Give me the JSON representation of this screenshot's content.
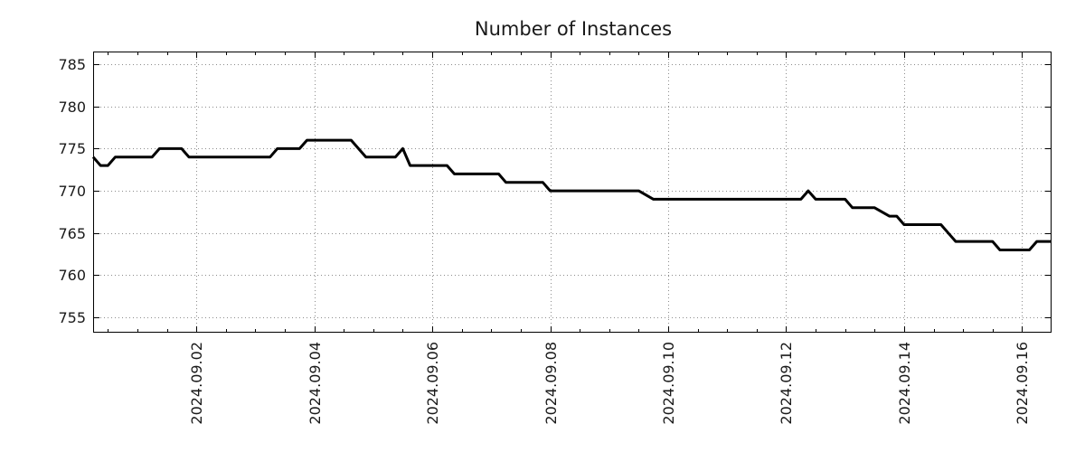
{
  "chart_data": {
    "type": "line",
    "title": "Number of Instances",
    "background": "#ffffff",
    "text_color": "#1a1a1a",
    "line_color": "#000000",
    "line_width": 3,
    "grid": {
      "show": true,
      "style": "dotted",
      "color": "#8c8c8c"
    },
    "legend": "none",
    "x_range": [
      "2024-08-31T06:00",
      "2024-09-16T12:00"
    ],
    "y_range": [
      753.2,
      786.5
    ],
    "y_ticks": [
      755,
      760,
      765,
      770,
      775,
      780,
      785
    ],
    "x_major_ticks": [
      {
        "t": "2024-09-02T00:00",
        "label": "2024.09.02"
      },
      {
        "t": "2024-09-04T00:00",
        "label": "2024.09.04"
      },
      {
        "t": "2024-09-06T00:00",
        "label": "2024.09.06"
      },
      {
        "t": "2024-09-08T00:00",
        "label": "2024.09.08"
      },
      {
        "t": "2024-09-10T00:00",
        "label": "2024.09.10"
      },
      {
        "t": "2024-09-12T00:00",
        "label": "2024.09.12"
      },
      {
        "t": "2024-09-14T00:00",
        "label": "2024.09.14"
      },
      {
        "t": "2024-09-16T00:00",
        "label": "2024.09.16"
      }
    ],
    "x_minor_tick_hours": 12,
    "series": [
      {
        "name": "instances",
        "points": [
          [
            "2024-08-31T06:00",
            774
          ],
          [
            "2024-08-31T09:00",
            773
          ],
          [
            "2024-08-31T12:00",
            773
          ],
          [
            "2024-08-31T15:00",
            774
          ],
          [
            "2024-09-01T06:00",
            774
          ],
          [
            "2024-09-01T09:00",
            775
          ],
          [
            "2024-09-01T18:00",
            775
          ],
          [
            "2024-09-01T21:00",
            774
          ],
          [
            "2024-09-03T06:00",
            774
          ],
          [
            "2024-09-03T09:00",
            775
          ],
          [
            "2024-09-03T18:00",
            775
          ],
          [
            "2024-09-03T21:00",
            776
          ],
          [
            "2024-09-04T15:00",
            776
          ],
          [
            "2024-09-04T18:00",
            775
          ],
          [
            "2024-09-04T21:00",
            774
          ],
          [
            "2024-09-05T09:00",
            774
          ],
          [
            "2024-09-05T12:00",
            775
          ],
          [
            "2024-09-05T15:00",
            773
          ],
          [
            "2024-09-06T06:00",
            773
          ],
          [
            "2024-09-06T09:00",
            772
          ],
          [
            "2024-09-07T03:00",
            772
          ],
          [
            "2024-09-07T06:00",
            771
          ],
          [
            "2024-09-07T21:00",
            771
          ],
          [
            "2024-09-08T00:00",
            770
          ],
          [
            "2024-09-09T12:00",
            770
          ],
          [
            "2024-09-09T18:00",
            769
          ],
          [
            "2024-09-12T06:00",
            769
          ],
          [
            "2024-09-12T09:00",
            770
          ],
          [
            "2024-09-12T12:00",
            769
          ],
          [
            "2024-09-13T00:00",
            769
          ],
          [
            "2024-09-13T03:00",
            768
          ],
          [
            "2024-09-13T12:00",
            768
          ],
          [
            "2024-09-13T18:00",
            767
          ],
          [
            "2024-09-13T21:00",
            767
          ],
          [
            "2024-09-14T00:00",
            766
          ],
          [
            "2024-09-14T15:00",
            766
          ],
          [
            "2024-09-14T18:00",
            765
          ],
          [
            "2024-09-14T21:00",
            764
          ],
          [
            "2024-09-15T12:00",
            764
          ],
          [
            "2024-09-15T15:00",
            763
          ],
          [
            "2024-09-16T03:00",
            763
          ],
          [
            "2024-09-16T06:00",
            764
          ],
          [
            "2024-09-16T12:00",
            764
          ]
        ]
      }
    ]
  }
}
